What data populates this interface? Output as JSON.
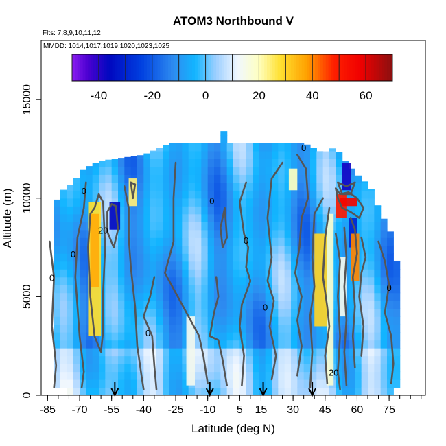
{
  "chart_data": {
    "type": "heatmap",
    "title": "ATOM3 Northbound V",
    "subtitle_flights": "Flts: 7,8,9,10,11,12",
    "subtitle_dates": "MMDD: 1014,1017,1019,1020,1023,1025",
    "xlabel": "Latitude (deg N)",
    "ylabel": "Altitude (m)",
    "xlim": [
      -88,
      92
    ],
    "ylim": [
      0,
      18000
    ],
    "x_ticks": [
      -85,
      -70,
      -55,
      -40,
      -25,
      -10,
      5,
      15,
      30,
      45,
      60,
      75
    ],
    "x_tick_labels": [
      "-85",
      "-70",
      "-55",
      "-40",
      "-25",
      "-10",
      "5",
      "15",
      "30",
      "45",
      "60",
      "75"
    ],
    "y_ticks": [
      0,
      5000,
      10000,
      15000
    ],
    "y_tick_labels": [
      "0",
      "5000",
      "10000",
      "15000"
    ],
    "colorbar": {
      "range": [
        -50,
        70
      ],
      "ticks": [
        -40,
        -20,
        0,
        20,
        40,
        60
      ],
      "tick_labels": [
        "-40",
        "-20",
        "0",
        "20",
        "40",
        "60"
      ],
      "stops": [
        {
          "v": -50,
          "c": "#8a1cf0"
        },
        {
          "v": -44,
          "c": "#4a00d0"
        },
        {
          "v": -36,
          "c": "#0008c0"
        },
        {
          "v": -24,
          "c": "#0040e0"
        },
        {
          "v": -12,
          "c": "#2e8cf0"
        },
        {
          "v": -4,
          "c": "#12b5ff"
        },
        {
          "v": 4,
          "c": "#9fd0ff"
        },
        {
          "v": 12,
          "c": "#f0f7ff"
        },
        {
          "v": 20,
          "c": "#ffffc0"
        },
        {
          "v": 28,
          "c": "#ffe030"
        },
        {
          "v": 38,
          "c": "#ffa000"
        },
        {
          "v": 48,
          "c": "#ff2000"
        },
        {
          "v": 58,
          "c": "#f00000"
        },
        {
          "v": 70,
          "c": "#8a1010"
        }
      ]
    },
    "contour_labels": [
      {
        "text": "0",
        "lat": -68,
        "alt": 10200
      },
      {
        "text": "20",
        "lat": -59,
        "alt": 8200
      },
      {
        "text": "0",
        "lat": -83,
        "alt": 5800
      },
      {
        "text": "0",
        "lat": -73,
        "alt": 7000
      },
      {
        "text": "0",
        "lat": -8,
        "alt": 9700
      },
      {
        "text": "0",
        "lat": 8,
        "alt": 7700
      },
      {
        "text": "0",
        "lat": 35,
        "alt": 12400
      },
      {
        "text": "0",
        "lat": -38,
        "alt": 3000
      },
      {
        "text": "0",
        "lat": 17,
        "alt": 4300
      },
      {
        "text": "20",
        "lat": 49,
        "alt": 1000
      },
      {
        "text": "0",
        "lat": 75,
        "alt": 5300
      }
    ],
    "arrows_lat": [
      -53.5,
      -9,
      16,
      39
    ],
    "cells": [
      {
        "lat0": -66,
        "lat1": -60,
        "alt0": 3000,
        "alt1": 9800,
        "v": 28
      },
      {
        "lat0": -65,
        "lat1": -61,
        "alt0": 5500,
        "alt1": 9200,
        "v": 36
      },
      {
        "lat0": -56,
        "lat1": -51,
        "alt0": 8400,
        "alt1": 9800,
        "v": -36
      },
      {
        "lat0": -47,
        "lat1": -43,
        "alt0": 9600,
        "alt1": 11000,
        "v": 24
      },
      {
        "lat0": -20,
        "lat1": -16,
        "alt0": 500,
        "alt1": 4000,
        "v": 14
      },
      {
        "lat0": 28,
        "lat1": 32,
        "alt0": 10400,
        "alt1": 11500,
        "v": 20
      },
      {
        "lat0": 40,
        "lat1": 46,
        "alt0": 3500,
        "alt1": 8200,
        "v": 30
      },
      {
        "lat0": 46,
        "lat1": 49,
        "alt0": 500,
        "alt1": 9200,
        "v": 18
      },
      {
        "lat0": 50,
        "lat1": 55,
        "alt0": 9000,
        "alt1": 10200,
        "v": 50
      },
      {
        "lat0": 52,
        "lat1": 60,
        "alt0": 9600,
        "alt1": 10000,
        "v": 56
      },
      {
        "lat0": 53,
        "lat1": 57,
        "alt0": 10400,
        "alt1": 11800,
        "v": -38
      },
      {
        "lat0": 56,
        "lat1": 60,
        "alt0": 7500,
        "alt1": 9000,
        "v": -30
      },
      {
        "lat0": 57,
        "lat1": 61,
        "alt0": 5800,
        "alt1": 8200,
        "v": 40
      },
      {
        "lat0": 52,
        "lat1": 55,
        "alt0": 4000,
        "alt1": 7000,
        "v": 14
      }
    ],
    "contours": [
      [
        [
          -63,
          9500
        ],
        [
          -61,
          10200
        ],
        [
          -59,
          9800
        ],
        [
          -58,
          7500
        ],
        [
          -59,
          5200
        ],
        [
          -59,
          3200
        ],
        [
          -60,
          2200
        ],
        [
          -63,
          3000
        ],
        [
          -65,
          5000
        ],
        [
          -66,
          7500
        ],
        [
          -65,
          9200
        ],
        [
          -63,
          9500
        ]
      ],
      [
        [
          -67,
          10800
        ],
        [
          -68,
          9500
        ],
        [
          -71,
          8000
        ],
        [
          -72,
          6000
        ],
        [
          -70,
          3000
        ],
        [
          -68,
          1200
        ],
        [
          -69,
          400
        ]
      ],
      [
        [
          -84,
          7800
        ],
        [
          -82,
          6000
        ],
        [
          -83,
          3500
        ],
        [
          -81,
          1500
        ],
        [
          -82,
          400
        ]
      ],
      [
        [
          -55,
          9700
        ],
        [
          -53,
          9600
        ],
        [
          -52,
          8400
        ],
        [
          -54,
          7500
        ],
        [
          -57,
          8300
        ],
        [
          -57,
          9300
        ],
        [
          -55,
          9700
        ]
      ],
      [
        [
          -49,
          10600
        ],
        [
          -47,
          9500
        ],
        [
          -47,
          8000
        ],
        [
          -46,
          6500
        ],
        [
          -44,
          4500
        ],
        [
          -43,
          2500
        ],
        [
          -41,
          1000
        ],
        [
          -40,
          300
        ]
      ],
      [
        [
          -46,
          10800
        ],
        [
          -45,
          10000
        ],
        [
          -44,
          10700
        ],
        [
          -46,
          10800
        ]
      ],
      [
        [
          -35,
          6000
        ],
        [
          -37,
          5000
        ],
        [
          -40,
          4000
        ],
        [
          -36,
          3000
        ],
        [
          -35,
          1500
        ],
        [
          -34,
          300
        ]
      ],
      [
        [
          -25,
          11800
        ],
        [
          -26,
          10000
        ],
        [
          -26,
          7800
        ],
        [
          -30,
          6200
        ],
        [
          -24,
          5000
        ],
        [
          -20,
          4200
        ],
        [
          -14,
          3000
        ],
        [
          -12,
          2000
        ],
        [
          -10,
          600
        ]
      ],
      [
        [
          -2,
          9500
        ],
        [
          -4,
          8500
        ],
        [
          -3,
          7500
        ],
        [
          -1,
          8000
        ],
        [
          -2,
          9500
        ]
      ],
      [
        [
          -6,
          6000
        ],
        [
          -5,
          5000
        ],
        [
          -7,
          4200
        ],
        [
          -9,
          3000
        ],
        [
          -5,
          2800
        ],
        [
          -3,
          1800
        ],
        [
          -1,
          500
        ]
      ],
      [
        [
          8,
          10800
        ],
        [
          5,
          9800
        ],
        [
          7,
          8200
        ],
        [
          9,
          7500
        ],
        [
          8,
          6500
        ],
        [
          10,
          5800
        ],
        [
          6,
          4600
        ],
        [
          5,
          3500
        ],
        [
          7,
          2000
        ],
        [
          6,
          500
        ]
      ],
      [
        [
          25,
          11800
        ],
        [
          20,
          11000
        ],
        [
          18,
          9000
        ],
        [
          20,
          7000
        ],
        [
          18,
          5800
        ],
        [
          21,
          4800
        ],
        [
          19,
          3500
        ],
        [
          22,
          2000
        ],
        [
          20,
          800
        ]
      ],
      [
        [
          32,
          12200
        ],
        [
          36,
          11500
        ],
        [
          37,
          10000
        ],
        [
          34,
          9000
        ],
        [
          33,
          7500
        ],
        [
          31,
          6200
        ],
        [
          34,
          5000
        ],
        [
          32,
          3800
        ],
        [
          34,
          2500
        ],
        [
          32,
          1000
        ]
      ],
      [
        [
          44,
          10000
        ],
        [
          40,
          9200
        ],
        [
          39,
          7000
        ],
        [
          40,
          5500
        ],
        [
          38,
          4000
        ],
        [
          39,
          2200
        ],
        [
          38,
          400
        ]
      ],
      [
        [
          47,
          9500
        ],
        [
          45,
          8000
        ],
        [
          44,
          6000
        ],
        [
          46,
          4500
        ],
        [
          47,
          3500
        ],
        [
          45,
          2000
        ],
        [
          46,
          600
        ]
      ],
      [
        [
          50,
          10500
        ],
        [
          52,
          10200
        ],
        [
          56,
          10300
        ],
        [
          60,
          10000
        ],
        [
          63,
          9500
        ],
        [
          61,
          9000
        ],
        [
          57,
          9300
        ],
        [
          53,
          9500
        ],
        [
          51,
          10000
        ],
        [
          50,
          10500
        ]
      ],
      [
        [
          51,
          10800
        ],
        [
          55,
          10600
        ],
        [
          59,
          10800
        ],
        [
          57,
          10200
        ],
        [
          53,
          10200
        ],
        [
          51,
          10800
        ]
      ],
      [
        [
          50,
          8200
        ],
        [
          52,
          6800
        ],
        [
          51,
          5000
        ],
        [
          52,
          3000
        ],
        [
          51,
          1200
        ],
        [
          52,
          300
        ]
      ],
      [
        [
          54,
          8500
        ],
        [
          55,
          7000
        ],
        [
          54,
          5500
        ],
        [
          55,
          3800
        ],
        [
          54,
          2200
        ],
        [
          55,
          500
        ]
      ],
      [
        [
          57,
          9000
        ],
        [
          59,
          8400
        ],
        [
          60,
          7200
        ],
        [
          58,
          6000
        ],
        [
          59,
          4500
        ],
        [
          58,
          3000
        ],
        [
          59,
          1400
        ]
      ],
      [
        [
          62,
          8000
        ],
        [
          64,
          7000
        ],
        [
          62,
          6200
        ],
        [
          61,
          5000
        ],
        [
          63,
          3500
        ],
        [
          62,
          2000
        ]
      ],
      [
        [
          70,
          7800
        ],
        [
          73,
          6800
        ],
        [
          75,
          5600
        ],
        [
          73,
          4200
        ],
        [
          76,
          3000
        ],
        [
          77,
          1600
        ],
        [
          76,
          600
        ]
      ]
    ]
  }
}
